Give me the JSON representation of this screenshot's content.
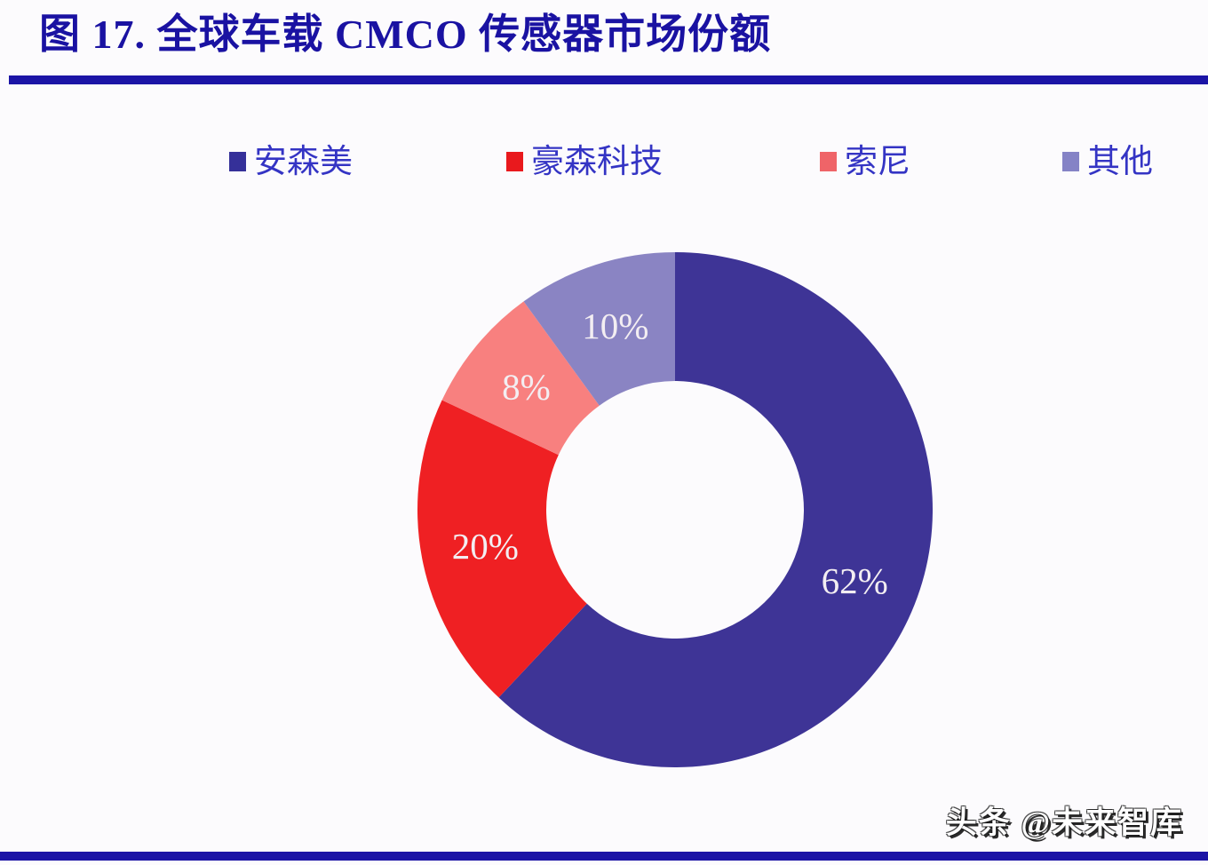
{
  "page": {
    "title": "图 17. 全球车载 CMCO 传感器市场份额",
    "watermark": "头条 @未来智库"
  },
  "colors": {
    "accent_rule": "#1b14a6",
    "title_text": "#1a12a2",
    "legend_text": "#3434c4",
    "background": "#fcfbfd",
    "slice_label_text": "#f3eef2"
  },
  "chart_data": {
    "type": "pie",
    "subtype": "donut",
    "title": "全球车载 CMCO 传感器市场份额",
    "categories": [
      "安森美",
      "豪森科技",
      "索尼",
      "其他"
    ],
    "values": [
      62,
      20,
      8,
      10
    ],
    "labels": [
      "62%",
      "20%",
      "8%",
      "10%"
    ],
    "unit": "%",
    "colors": [
      "#3e3496",
      "#ef2023",
      "#f8807f",
      "#8a84c3"
    ],
    "legend_colors": [
      "#353099",
      "#e9191d",
      "#ef6468",
      "#8583c6"
    ],
    "start_angle_deg": 0,
    "direction": "clockwise",
    "inner_radius_ratio": 0.5,
    "legend_position": "top",
    "grid": false
  }
}
